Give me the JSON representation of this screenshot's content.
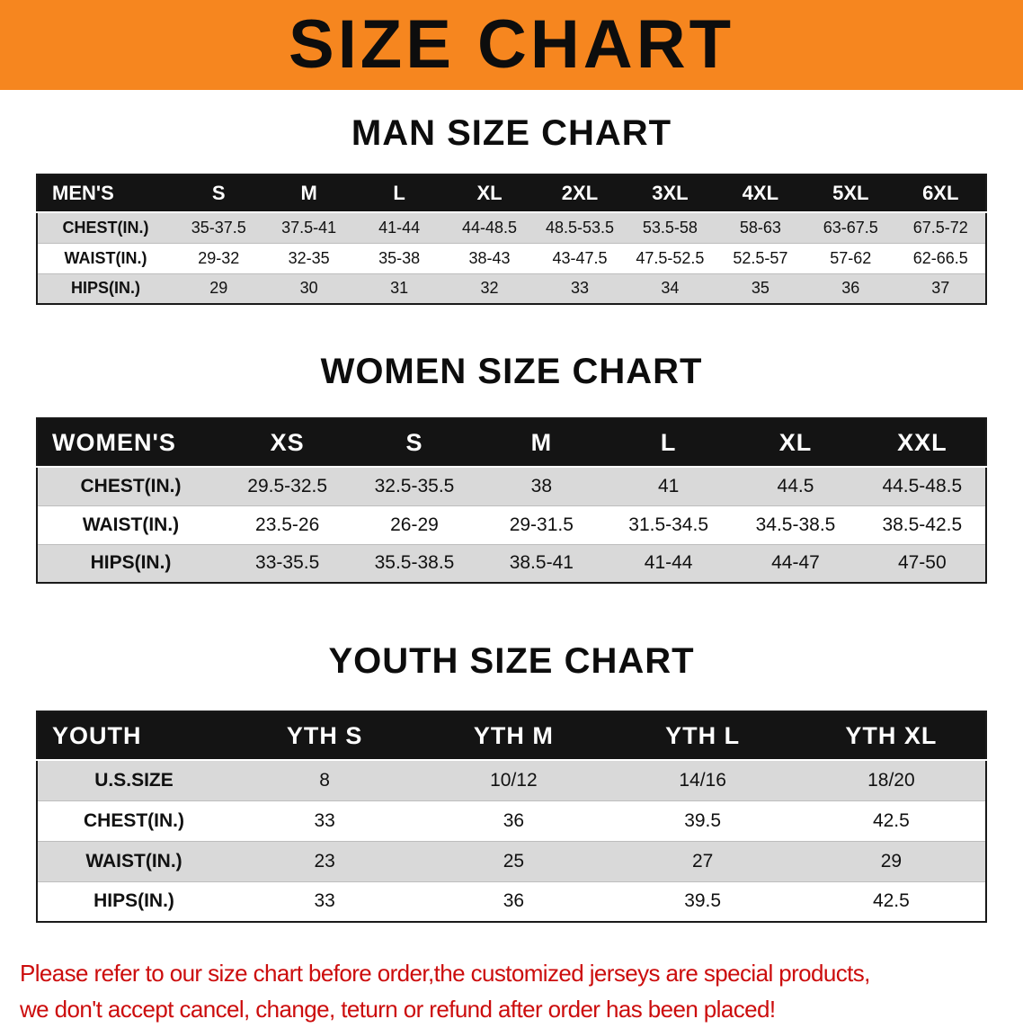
{
  "banner": {
    "title": "SIZE CHART"
  },
  "theme": {
    "banner_bg": "#f6861f",
    "table_header_bg": "#141414",
    "row_stripe": "#d9d9d9",
    "footer_red": "#cc0d0d",
    "table_border": "#1a1a1a"
  },
  "sections": [
    {
      "heading": "MAN SIZE CHART",
      "table": {
        "header": [
          "MEN'S",
          "S",
          "M",
          "L",
          "XL",
          "2XL",
          "3XL",
          "4XL",
          "5XL",
          "6XL"
        ],
        "rows": [
          [
            "CHEST(IN.)",
            "35-37.5",
            "37.5-41",
            "41-44",
            "44-48.5",
            "48.5-53.5",
            "53.5-58",
            "58-63",
            "63-67.5",
            "67.5-72"
          ],
          [
            "WAIST(IN.)",
            "29-32",
            "32-35",
            "35-38",
            "38-43",
            "43-47.5",
            "47.5-52.5",
            "52.5-57",
            "57-62",
            "62-66.5"
          ],
          [
            "HIPS(IN.)",
            "29",
            "30",
            "31",
            "32",
            "33",
            "34",
            "35",
            "36",
            "37"
          ]
        ]
      }
    },
    {
      "heading": "WOMEN SIZE CHART",
      "table": {
        "header": [
          "WOMEN'S",
          "XS",
          "S",
          "M",
          "L",
          "XL",
          "XXL"
        ],
        "rows": [
          [
            "CHEST(IN.)",
            "29.5-32.5",
            "32.5-35.5",
            "38",
            "41",
            "44.5",
            "44.5-48.5"
          ],
          [
            "WAIST(IN.)",
            "23.5-26",
            "26-29",
            "29-31.5",
            "31.5-34.5",
            "34.5-38.5",
            "38.5-42.5"
          ],
          [
            "HIPS(IN.)",
            "33-35.5",
            "35.5-38.5",
            "38.5-41",
            "41-44",
            "44-47",
            "47-50"
          ]
        ]
      }
    },
    {
      "heading": "YOUTH SIZE CHART",
      "table": {
        "header": [
          "YOUTH",
          "YTH S",
          "YTH M",
          "YTH L",
          "YTH XL"
        ],
        "rows": [
          [
            "U.S.SIZE",
            "8",
            "10/12",
            "14/16",
            "18/20"
          ],
          [
            "CHEST(IN.)",
            "33",
            "36",
            "39.5",
            "42.5"
          ],
          [
            "WAIST(IN.)",
            "23",
            "25",
            "27",
            "29"
          ],
          [
            "HIPS(IN.)",
            "33",
            "36",
            "39.5",
            "42.5"
          ]
        ]
      }
    }
  ],
  "footer": {
    "line1": "Please refer to our size chart before order,the customized jerseys are special products,",
    "line2": "we don't accept cancel, change, teturn or refund after order has been placed!"
  }
}
